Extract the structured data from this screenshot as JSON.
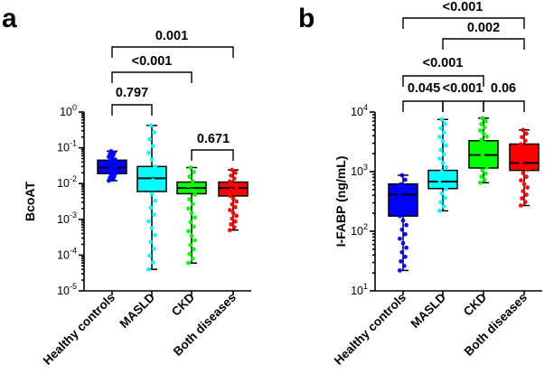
{
  "chart_data": [
    {
      "type": "box",
      "panel": "a",
      "ylabel": "BcoAT",
      "yscale": "log",
      "ylim": [
        1e-05,
        1
      ],
      "yticks": [
        {
          "base": "10",
          "exp": "0"
        },
        {
          "base": "10",
          "exp": "-1"
        },
        {
          "base": "10",
          "exp": "-2"
        },
        {
          "base": "10",
          "exp": "-3"
        },
        {
          "base": "10",
          "exp": "-4"
        },
        {
          "base": "10",
          "exp": "-5"
        }
      ],
      "categories": [
        "Healthy controls",
        "MASLD",
        "CKD",
        "Both diseases"
      ],
      "groups": [
        {
          "name": "Healthy controls",
          "color": "#0000ff",
          "min": 0.012,
          "q1": 0.019,
          "median": 0.028,
          "q3": 0.045,
          "max": 0.08
        },
        {
          "name": "MASLD",
          "color": "#00ffff",
          "min": 4e-05,
          "q1": 0.006,
          "median": 0.014,
          "q3": 0.03,
          "max": 0.42
        },
        {
          "name": "CKD",
          "color": "#00ff00",
          "min": 6e-05,
          "q1": 0.0052,
          "median": 0.0075,
          "q3": 0.011,
          "max": 0.028
        },
        {
          "name": "Both diseases",
          "color": "#ff0000",
          "min": 0.0005,
          "q1": 0.0045,
          "median": 0.0075,
          "q3": 0.011,
          "max": 0.024
        }
      ],
      "comparisons": [
        {
          "from": "Healthy controls",
          "to": "MASLD",
          "label": "0.797"
        },
        {
          "from": "Healthy controls",
          "to": "CKD",
          "label": "<0.001"
        },
        {
          "from": "Healthy controls",
          "to": "Both diseases",
          "label": "0.001"
        },
        {
          "from": "CKD",
          "to": "Both diseases",
          "label": "0.671"
        }
      ]
    },
    {
      "type": "box",
      "panel": "b",
      "ylabel": "I-FABP (ng/mL)",
      "yscale": "log",
      "ylim": [
        10,
        10000
      ],
      "yticks": [
        {
          "base": "10",
          "exp": "4"
        },
        {
          "base": "10",
          "exp": "3"
        },
        {
          "base": "10",
          "exp": "2"
        },
        {
          "base": "10",
          "exp": "1"
        }
      ],
      "categories": [
        "Healthy controls",
        "MASLD",
        "CKD",
        "Both diseases"
      ],
      "groups": [
        {
          "name": "Healthy controls",
          "color": "#0000ff",
          "min": 22,
          "q1": 180,
          "median": 410,
          "q3": 620,
          "max": 870
        },
        {
          "name": "MASLD",
          "color": "#00ffff",
          "min": 220,
          "q1": 520,
          "median": 680,
          "q3": 1050,
          "max": 7500
        },
        {
          "name": "CKD",
          "color": "#00ff00",
          "min": 650,
          "q1": 1150,
          "median": 1900,
          "q3": 3300,
          "max": 7900
        },
        {
          "name": "Both diseases",
          "color": "#ff0000",
          "min": 270,
          "q1": 1050,
          "median": 1400,
          "q3": 2900,
          "max": 5000
        }
      ],
      "comparisons": [
        {
          "from": "Healthy controls",
          "to": "MASLD",
          "label": "0.045"
        },
        {
          "from": "MASLD",
          "to": "CKD",
          "label": "<0.001"
        },
        {
          "from": "CKD",
          "to": "Both diseases",
          "label": "0.06"
        },
        {
          "from": "Healthy controls",
          "to": "CKD",
          "label": "<0.001"
        },
        {
          "from": "MASLD",
          "to": "Both diseases",
          "label": "0.002"
        },
        {
          "from": "Healthy controls",
          "to": "Both diseases",
          "label": "<0.001"
        }
      ]
    }
  ]
}
